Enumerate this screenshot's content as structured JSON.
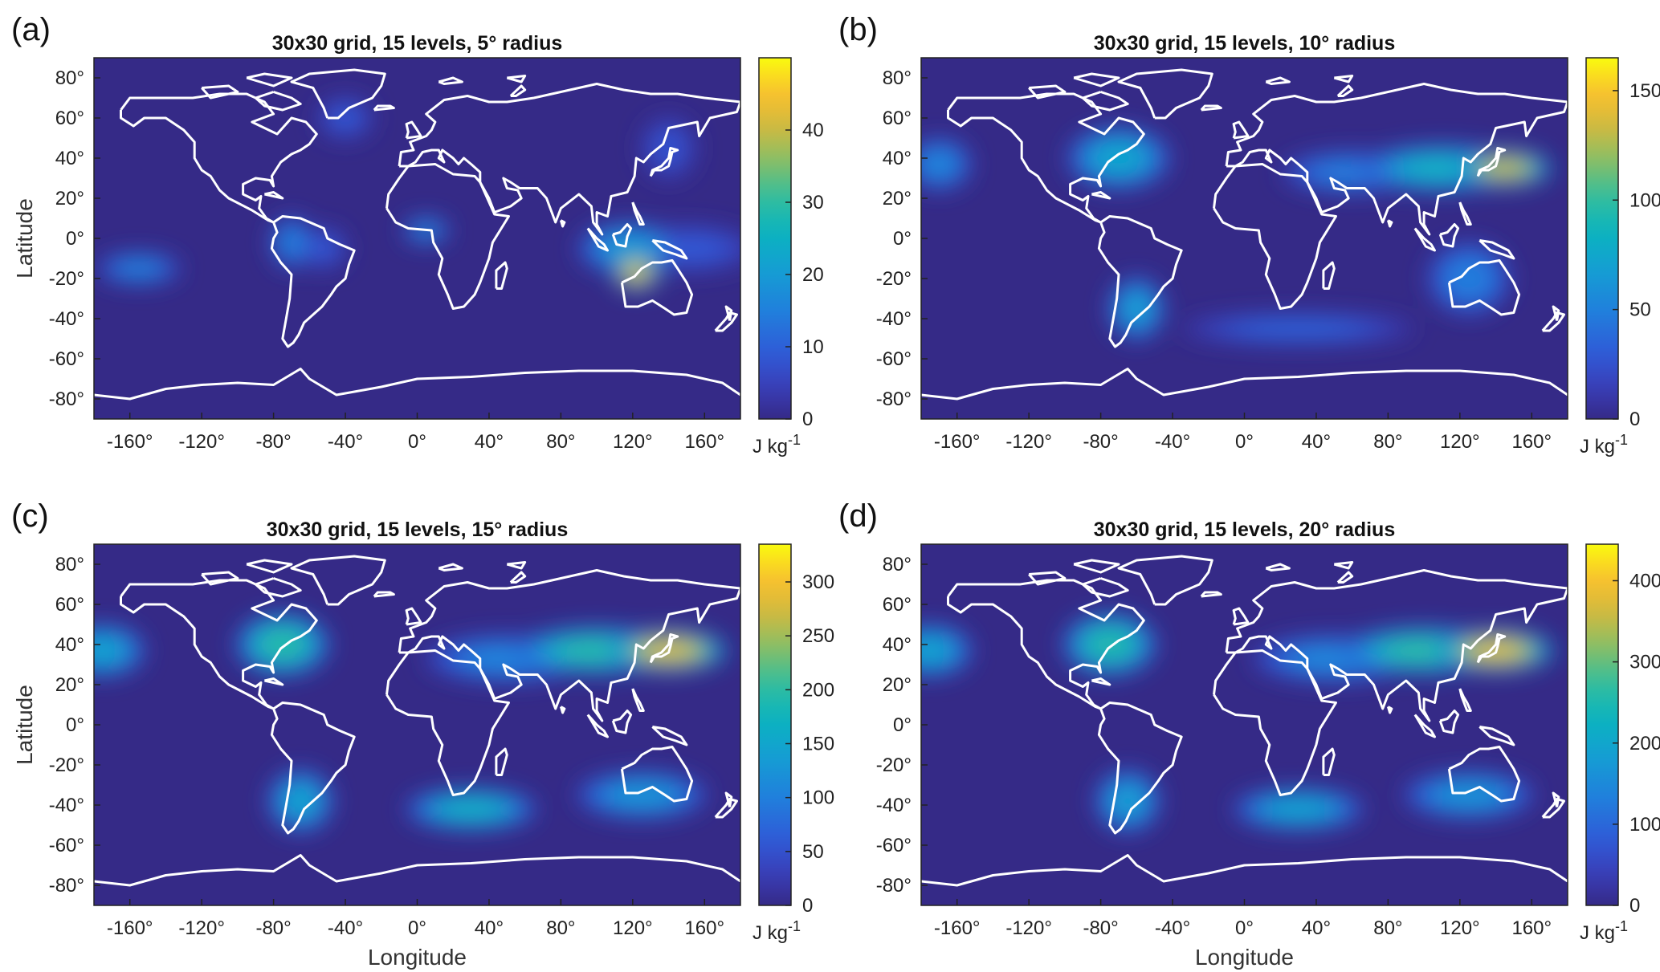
{
  "chart_data": [
    {
      "type": "heatmap",
      "panel_label": "(a)",
      "title": "30x30 grid, 15 levels, 5° radius",
      "xlabel": "",
      "ylabel": "Latitude",
      "xticks": [
        "-160°",
        "-120°",
        "-80°",
        "-40°",
        "0°",
        "40°",
        "80°",
        "120°",
        "160°"
      ],
      "xtick_values": [
        -160,
        -120,
        -80,
        -40,
        0,
        40,
        80,
        120,
        160
      ],
      "yticks": [
        "80°",
        "60°",
        "40°",
        "20°",
        "0°",
        "-20°",
        "-40°",
        "-60°",
        "-80°"
      ],
      "ytick_values": [
        80,
        60,
        40,
        20,
        0,
        -20,
        -40,
        -60,
        -80
      ],
      "xlim": [
        -180,
        180
      ],
      "ylim": [
        -90,
        90
      ],
      "colorbar": {
        "ticks": [
          0,
          10,
          20,
          30,
          40
        ],
        "range": [
          0,
          50
        ],
        "unit": "J kg",
        "unit_exp": "-1"
      },
      "max_value": 50,
      "hotspots": [
        {
          "lon": 122,
          "lat": -17,
          "value": 44,
          "rx": 10,
          "ry": 7
        },
        {
          "lon": 118,
          "lat": -5,
          "value": 20,
          "rx": 22,
          "ry": 10
        },
        {
          "lon": 150,
          "lat": -5,
          "value": 9,
          "rx": 30,
          "ry": 9
        },
        {
          "lon": 5,
          "lat": 4,
          "value": 17,
          "rx": 10,
          "ry": 5
        },
        {
          "lon": -70,
          "lat": -2,
          "value": 16,
          "rx": 9,
          "ry": 10
        },
        {
          "lon": -52,
          "lat": -5,
          "value": 9,
          "rx": 10,
          "ry": 8
        },
        {
          "lon": -155,
          "lat": -15,
          "value": 16,
          "rx": 18,
          "ry": 6
        },
        {
          "lon": -40,
          "lat": 60,
          "value": 9,
          "rx": 12,
          "ry": 8
        },
        {
          "lon": 140,
          "lat": 45,
          "value": 8,
          "rx": 12,
          "ry": 12
        }
      ]
    },
    {
      "type": "heatmap",
      "panel_label": "(b)",
      "title": "30x30 grid, 15 levels, 10° radius",
      "xlabel": "",
      "ylabel": "",
      "xticks": [
        "-160°",
        "-120°",
        "-80°",
        "-40°",
        "0°",
        "40°",
        "80°",
        "120°",
        "160°"
      ],
      "xtick_values": [
        -160,
        -120,
        -80,
        -40,
        0,
        40,
        80,
        120,
        160
      ],
      "yticks": [
        "80°",
        "60°",
        "40°",
        "20°",
        "0°",
        "-20°",
        "-40°",
        "-60°",
        "-80°"
      ],
      "ytick_values": [
        80,
        60,
        40,
        20,
        0,
        -20,
        -40,
        -60,
        -80
      ],
      "xlim": [
        -180,
        180
      ],
      "ylim": [
        -90,
        90
      ],
      "colorbar": {
        "ticks": [
          0,
          50,
          100,
          150
        ],
        "range": [
          0,
          165
        ],
        "unit": "J kg",
        "unit_exp": "-1"
      },
      "max_value": 165,
      "hotspots": [
        {
          "lon": 145,
          "lat": 35,
          "value": 135,
          "rx": 20,
          "ry": 7
        },
        {
          "lon": 110,
          "lat": 35,
          "value": 85,
          "rx": 35,
          "ry": 9
        },
        {
          "lon": 60,
          "lat": 33,
          "value": 50,
          "rx": 30,
          "ry": 8
        },
        {
          "lon": -70,
          "lat": 40,
          "value": 75,
          "rx": 22,
          "ry": 12
        },
        {
          "lon": -170,
          "lat": 37,
          "value": 55,
          "rx": 14,
          "ry": 10
        },
        {
          "lon": -60,
          "lat": -35,
          "value": 70,
          "rx": 12,
          "ry": 12
        },
        {
          "lon": 125,
          "lat": -20,
          "value": 50,
          "rx": 18,
          "ry": 14
        },
        {
          "lon": 30,
          "lat": -45,
          "value": 35,
          "rx": 50,
          "ry": 6
        }
      ]
    },
    {
      "type": "heatmap",
      "panel_label": "(c)",
      "title": "30x30 grid, 15 levels, 15° radius",
      "xlabel": "Longitude",
      "ylabel": "Latitude",
      "xticks": [
        "-160°",
        "-120°",
        "-80°",
        "-40°",
        "0°",
        "40°",
        "80°",
        "120°",
        "160°"
      ],
      "xtick_values": [
        -160,
        -120,
        -80,
        -40,
        0,
        40,
        80,
        120,
        160
      ],
      "yticks": [
        "80°",
        "60°",
        "40°",
        "20°",
        "0°",
        "-20°",
        "-40°",
        "-60°",
        "-80°"
      ],
      "ytick_values": [
        80,
        60,
        40,
        20,
        0,
        -20,
        -40,
        -60,
        -80
      ],
      "xlim": [
        -180,
        180
      ],
      "ylim": [
        -90,
        90
      ],
      "colorbar": {
        "ticks": [
          0,
          50,
          100,
          150,
          200,
          250,
          300
        ],
        "range": [
          0,
          335
        ],
        "unit": "J kg",
        "unit_exp": "-1"
      },
      "max_value": 335,
      "hotspots": [
        {
          "lon": 140,
          "lat": 37,
          "value": 290,
          "rx": 25,
          "ry": 8
        },
        {
          "lon": 100,
          "lat": 37,
          "value": 200,
          "rx": 35,
          "ry": 9
        },
        {
          "lon": 50,
          "lat": 33,
          "value": 110,
          "rx": 35,
          "ry": 9
        },
        {
          "lon": -75,
          "lat": 40,
          "value": 200,
          "rx": 20,
          "ry": 12
        },
        {
          "lon": -175,
          "lat": 37,
          "value": 150,
          "rx": 18,
          "ry": 10
        },
        {
          "lon": 30,
          "lat": -42,
          "value": 170,
          "rx": 28,
          "ry": 8
        },
        {
          "lon": -65,
          "lat": -38,
          "value": 150,
          "rx": 14,
          "ry": 12
        },
        {
          "lon": 125,
          "lat": -35,
          "value": 130,
          "rx": 28,
          "ry": 9
        }
      ]
    },
    {
      "type": "heatmap",
      "panel_label": "(d)",
      "title": "30x30 grid, 15 levels, 20° radius",
      "xlabel": "Longitude",
      "ylabel": "",
      "xticks": [
        "-160°",
        "-120°",
        "-80°",
        "-40°",
        "0°",
        "40°",
        "80°",
        "120°",
        "160°"
      ],
      "xtick_values": [
        -160,
        -120,
        -80,
        -40,
        0,
        40,
        80,
        120,
        160
      ],
      "yticks": [
        "80°",
        "60°",
        "40°",
        "20°",
        "0°",
        "-20°",
        "-40°",
        "-60°",
        "-80°"
      ],
      "ytick_values": [
        80,
        60,
        40,
        20,
        0,
        -20,
        -40,
        -60,
        -80
      ],
      "xlim": [
        -180,
        180
      ],
      "ylim": [
        -90,
        90
      ],
      "colorbar": {
        "ticks": [
          0,
          100,
          200,
          300,
          400
        ],
        "range": [
          0,
          445
        ],
        "unit": "J kg",
        "unit_exp": "-1"
      },
      "max_value": 445,
      "hotspots": [
        {
          "lon": 140,
          "lat": 37,
          "value": 390,
          "rx": 25,
          "ry": 8
        },
        {
          "lon": 100,
          "lat": 37,
          "value": 270,
          "rx": 35,
          "ry": 9
        },
        {
          "lon": 50,
          "lat": 33,
          "value": 150,
          "rx": 35,
          "ry": 9
        },
        {
          "lon": -75,
          "lat": 40,
          "value": 260,
          "rx": 20,
          "ry": 12
        },
        {
          "lon": -175,
          "lat": 37,
          "value": 200,
          "rx": 18,
          "ry": 10
        },
        {
          "lon": 30,
          "lat": -42,
          "value": 200,
          "rx": 28,
          "ry": 8
        },
        {
          "lon": -65,
          "lat": -38,
          "value": 190,
          "rx": 14,
          "ry": 12
        },
        {
          "lon": 125,
          "lat": -35,
          "value": 170,
          "rx": 28,
          "ry": 9
        }
      ]
    }
  ]
}
